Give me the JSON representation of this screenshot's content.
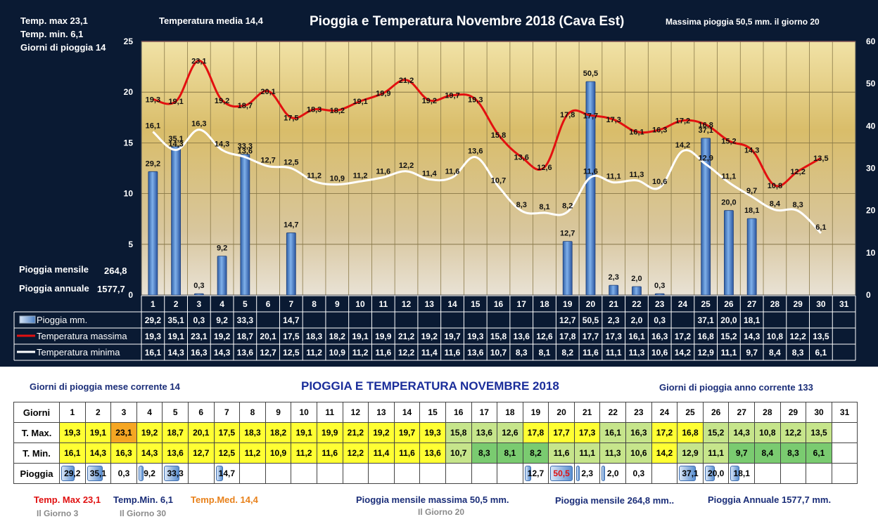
{
  "chart_data": {
    "type": "bar+line",
    "title": "Pioggia e Temperatura Novembre 2018 (Cava Est)",
    "categories": [
      "1",
      "2",
      "3",
      "4",
      "5",
      "6",
      "7",
      "8",
      "9",
      "10",
      "11",
      "12",
      "13",
      "14",
      "15",
      "16",
      "17",
      "18",
      "19",
      "20",
      "21",
      "22",
      "23",
      "24",
      "25",
      "26",
      "27",
      "28",
      "29",
      "30",
      "31"
    ],
    "left_axis": {
      "ylim": [
        0,
        25
      ],
      "ticks": [
        "0",
        "5",
        "10",
        "15",
        "20",
        "25"
      ]
    },
    "right_axis": {
      "ylim": [
        0,
        60
      ],
      "ticks": [
        "0",
        "10",
        "20",
        "30",
        "40",
        "50",
        "60"
      ]
    },
    "series": [
      {
        "name": "Pioggia mm.",
        "type": "bar",
        "axis": "right",
        "values": [
          29.2,
          35.1,
          0.3,
          9.2,
          33.3,
          null,
          14.7,
          null,
          null,
          null,
          null,
          null,
          null,
          null,
          null,
          null,
          null,
          null,
          12.7,
          50.5,
          2.3,
          2.0,
          0.3,
          null,
          37.1,
          20.0,
          18.1,
          null,
          null,
          null,
          null
        ],
        "labels": [
          "29,2",
          "35,1",
          "0,3",
          "9,2",
          "33,3",
          "",
          "14,7",
          "",
          "",
          "",
          "",
          "",
          "",
          "",
          "",
          "",
          "",
          "",
          "12,7",
          "50,5",
          "2,3",
          "2,0",
          "0,3",
          "",
          "37,1",
          "20,0",
          "18,1",
          "",
          "",
          "",
          ""
        ]
      },
      {
        "name": "Temperatura massima",
        "type": "line",
        "axis": "left",
        "values": [
          19.3,
          19.1,
          23.1,
          19.2,
          18.7,
          20.1,
          17.5,
          18.3,
          18.2,
          19.1,
          19.9,
          21.2,
          19.2,
          19.7,
          19.3,
          15.8,
          13.6,
          12.6,
          17.8,
          17.7,
          17.3,
          16.1,
          16.3,
          17.2,
          16.8,
          15.2,
          14.3,
          10.8,
          12.2,
          13.5,
          null
        ],
        "labels": [
          "19,3",
          "19,1",
          "23,1",
          "19,2",
          "18,7",
          "20,1",
          "17,5",
          "18,3",
          "18,2",
          "19,1",
          "19,9",
          "21,2",
          "19,2",
          "19,7",
          "19,3",
          "15,8",
          "13,6",
          "12,6",
          "17,8",
          "17,7",
          "17,3",
          "16,1",
          "16,3",
          "17,2",
          "16,8",
          "15,2",
          "14,3",
          "10,8",
          "12,2",
          "13,5",
          ""
        ]
      },
      {
        "name": "Temperatura minima",
        "type": "line",
        "axis": "left",
        "values": [
          16.1,
          14.3,
          16.3,
          14.3,
          13.6,
          12.7,
          12.5,
          11.2,
          10.9,
          11.2,
          11.6,
          12.2,
          11.4,
          11.6,
          13.6,
          10.7,
          8.3,
          8.1,
          8.2,
          11.6,
          11.1,
          11.3,
          10.6,
          14.2,
          12.9,
          11.1,
          9.7,
          8.4,
          8.3,
          6.1,
          null
        ],
        "labels": [
          "16,1",
          "14,3",
          "16,3",
          "14,3",
          "13,6",
          "12,7",
          "12,5",
          "11,2",
          "10,9",
          "11,2",
          "11,6",
          "12,2",
          "11,4",
          "11,6",
          "13,6",
          "10,7",
          "8,3",
          "8,1",
          "8,2",
          "11,6",
          "11,1",
          "11,3",
          "10,6",
          "14,2",
          "12,9",
          "11,1",
          "9,7",
          "8,4",
          "8,3",
          "6,1",
          ""
        ]
      }
    ],
    "grid": true,
    "legend": "bottom-left",
    "colors": {
      "rain": "#4a7fc4",
      "tmax": "#e31010",
      "tmin": "#ffffff",
      "panel": "#0a1a33"
    }
  },
  "header": {
    "temp_max": "Temp. max  23,1",
    "temp_min": "Temp.  min. 6,1",
    "giorni_pioggia": "Giorni  di pioggia   14",
    "temp_media": "Temperatura media  14,4",
    "title": "Pioggia e Temperatura Novembre 2018 (Cava Est)",
    "massima_pioggia": "Massima pioggia  50,5 mm.  il giorno 20",
    "pioggia_mensile_label": "Pioggia mensile",
    "pioggia_mensile_value": "264,8",
    "pioggia_annuale_label": "Pioggia annuale",
    "pioggia_annuale_value": "1577,7"
  },
  "legend": {
    "rain": "Pioggia mm.",
    "tmax": "Temperatura massima",
    "tmin": "Temperatura minima"
  },
  "bottom": {
    "giorni_mese": "Giorni di pioggia  mese corrente    14",
    "title": "PIOGGIA E TEMPERATURA NOVEMBRE 2018",
    "giorni_anno": "Giorni di pioggia  anno corrente  133",
    "row_labels": {
      "days": "Giorni",
      "tmax": "T. Max.",
      "tmin": "T. Min.",
      "rain": "Pioggia"
    },
    "tmax_color_codes": [
      "y",
      "y",
      "o",
      "y",
      "y",
      "y",
      "y",
      "y",
      "y",
      "y",
      "y",
      "y",
      "y",
      "y",
      "y",
      "g",
      "g",
      "g",
      "y",
      "y",
      "y",
      "g",
      "g",
      "y",
      "y",
      "g",
      "g",
      "g",
      "g",
      "g",
      ""
    ],
    "tmin_color_codes": [
      "y",
      "y",
      "y",
      "y",
      "y",
      "y",
      "y",
      "y",
      "y",
      "y",
      "y",
      "y",
      "y",
      "y",
      "y",
      "g",
      "G",
      "G",
      "G",
      "g",
      "g",
      "g",
      "g",
      "y",
      "g",
      "g",
      "G",
      "G",
      "G",
      "G",
      ""
    ],
    "footer": {
      "temp_max": "Temp. Max 23,1",
      "temp_max_day": "Il Giorno   3",
      "temp_min": "Temp.Min.  6,1",
      "temp_min_day": "Il Giorno 30",
      "temp_med": "Temp.Med. 14,4",
      "pioggia_massima": "Pioggia mensile massima  50,5 mm.",
      "pioggia_massima_day": "Il Giorno 20",
      "pioggia_mensile": "Pioggia mensile  264,8 mm..",
      "pioggia_annuale": "Pioggia Annuale  1577,7 mm."
    }
  }
}
